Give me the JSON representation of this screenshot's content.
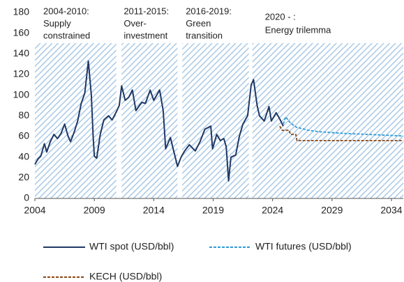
{
  "chart_data": {
    "type": "line",
    "xlim": [
      2004,
      2035
    ],
    "ylim": [
      0,
      180
    ],
    "xticks": [
      2004,
      2009,
      2014,
      2019,
      2024,
      2029,
      2034
    ],
    "yticks": [
      0,
      20,
      40,
      60,
      80,
      100,
      120,
      140,
      160,
      180
    ],
    "grid": false,
    "hatch_color": "#a9c9e6",
    "periods": [
      {
        "lines": [
          "2004-2010:",
          "Supply",
          "constrained"
        ],
        "start": 2004,
        "end": 2010.85
      },
      {
        "lines": [
          "2011-2015:",
          "Over-",
          "investment"
        ],
        "start": 2011.3,
        "end": 2016.0
      },
      {
        "lines": [
          "2016-2019:",
          "Green",
          "transition"
        ],
        "start": 2016.4,
        "end": 2022.0
      },
      {
        "lines": [
          "2020 - :",
          "Energy trilemma"
        ],
        "start": 2022.3,
        "end": 2035
      }
    ],
    "series": [
      {
        "name": "WTI spot (USD/bbl)",
        "color": "#1f3864",
        "dash": false,
        "x": [
          2004,
          2004.25,
          2004.5,
          2004.8,
          2005,
          2005.3,
          2005.6,
          2005.9,
          2006.2,
          2006.5,
          2006.8,
          2007,
          2007.3,
          2007.6,
          2007.9,
          2008.2,
          2008.5,
          2008.75,
          2008.9,
          2009.0,
          2009.2,
          2009.5,
          2009.8,
          2010.2,
          2010.5,
          2010.9,
          2011.1,
          2011.3,
          2011.6,
          2011.9,
          2012.2,
          2012.5,
          2012.8,
          2013.0,
          2013.3,
          2013.7,
          2014.0,
          2014.5,
          2014.8,
          2015.0,
          2015.4,
          2015.7,
          2016.0,
          2016.3,
          2016.6,
          2017.0,
          2017.5,
          2017.9,
          2018.3,
          2018.8,
          2018.95,
          2019.3,
          2019.6,
          2019.9,
          2020.1,
          2020.3,
          2020.5,
          2020.9,
          2021.2,
          2021.5,
          2021.9,
          2022.2,
          2022.4,
          2022.7,
          2022.9,
          2023.3,
          2023.7,
          2023.9,
          2024.3,
          2024.6,
          2024.9
        ],
        "values": [
          33,
          38,
          41,
          53,
          45,
          55,
          62,
          58,
          63,
          72,
          60,
          55,
          64,
          75,
          92,
          102,
          133,
          100,
          60,
          41,
          39,
          62,
          76,
          80,
          76,
          85,
          90,
          109,
          95,
          98,
          105,
          85,
          90,
          93,
          92,
          105,
          95,
          105,
          85,
          48,
          59,
          45,
          31,
          40,
          46,
          52,
          46,
          55,
          67,
          70,
          48,
          62,
          56,
          58,
          50,
          17,
          40,
          42,
          60,
          72,
          80,
          110,
          115,
          90,
          80,
          75,
          89,
          75,
          83,
          77,
          70
        ]
      },
      {
        "name": "WTI futures (USD/bbl)",
        "color": "#2e9bd6",
        "dash": true,
        "x": [
          2024.9,
          2025.1,
          2025.5,
          2026,
          2027,
          2028,
          2030,
          2032,
          2035
        ],
        "values": [
          72,
          79,
          73,
          69,
          66,
          64.5,
          63,
          62,
          60.5
        ]
      },
      {
        "name": "KECH (USD/bbl)",
        "color": "#8b4513",
        "dash": true,
        "x": [
          2024.6,
          2024.8,
          2025.4,
          2025.5,
          2025.95,
          2026.05,
          2035
        ],
        "values": [
          70,
          66,
          66,
          62,
          62,
          56,
          56
        ]
      }
    ]
  }
}
